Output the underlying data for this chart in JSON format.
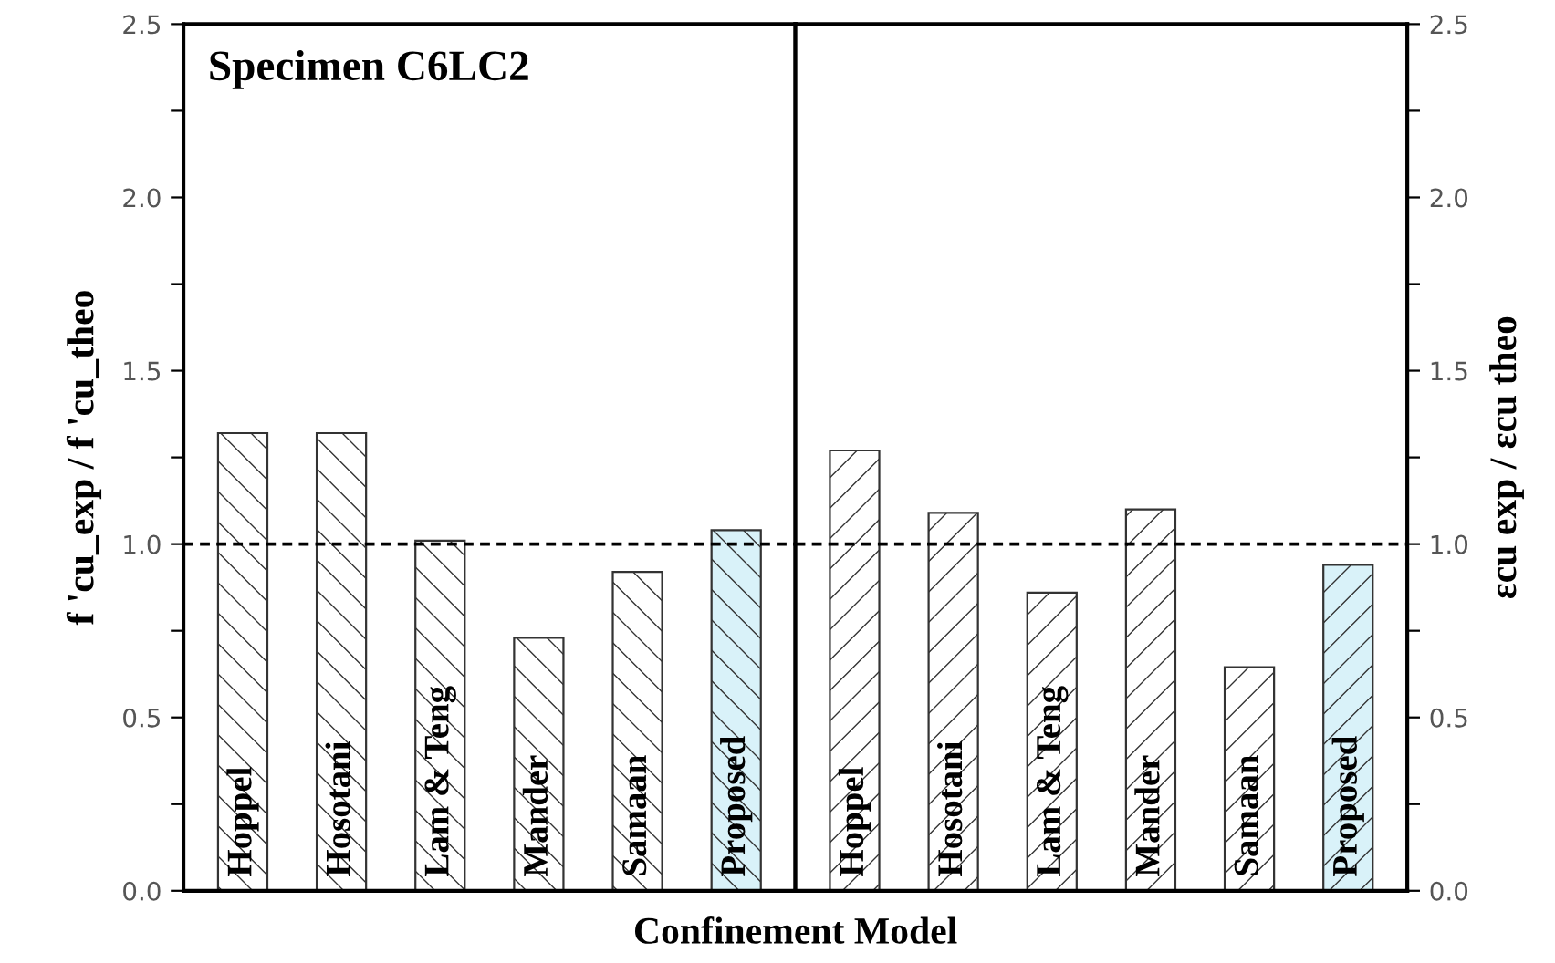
{
  "chart_data": [
    {
      "type": "bar",
      "xlabel": "Confinement Model",
      "ylabel": "f 'cu_exp / f 'cu_theo",
      "annotations": [
        "Specimen C6LC2"
      ],
      "categories": [
        "Hoppel",
        "Hosotani",
        "Lam & Teng",
        "Mander",
        "Samaan",
        "Proposed"
      ],
      "values": [
        1.32,
        1.32,
        1.01,
        0.73,
        0.92,
        1.04
      ],
      "colors": [
        "#ffffff",
        "#ffffff",
        "#ffffff",
        "#ffffff",
        "#ffffff",
        "#d9f2f9"
      ],
      "ylim": [
        0,
        2.5
      ],
      "yticks": [
        {
          "value": 0,
          "label": "0.0"
        },
        {
          "value": 0.25,
          "label": null
        },
        0.5,
        {
          "value": 0.75,
          "label": null
        },
        {
          "value": 1,
          "label": "1.0"
        },
        {
          "value": 1.25,
          "label": null
        },
        1.5,
        {
          "value": 1.75,
          "label": null
        },
        {
          "value": 2,
          "label": "2.0"
        },
        {
          "value": 2.25,
          "label": null
        },
        2.5
      ],
      "ref_lines": [
        {
          "axis": "y",
          "value": 1.0,
          "line_style": "dashed"
        }
      ],
      "tick_labels": "y",
      "grid": false,
      "legend": false
    },
    {
      "type": "bar",
      "ylabel": "εcu exp / εcu theo",
      "categories": [
        "Hoppel",
        "Hosotani",
        "Lam & Teng",
        "Mander",
        "Samaan",
        "Proposed"
      ],
      "values": [
        1.27,
        1.09,
        0.86,
        1.1,
        0.645,
        0.94
      ],
      "colors": [
        "#ffffff",
        "#ffffff",
        "#ffffff",
        "#ffffff",
        "#ffffff",
        "#d9f2f9"
      ],
      "ylim": [
        0,
        2.5
      ],
      "yticks": [
        {
          "value": 0,
          "label": "0.0"
        },
        {
          "value": 0.25,
          "label": null
        },
        0.5,
        {
          "value": 0.75,
          "label": null
        },
        {
          "value": 1,
          "label": "1.0"
        },
        {
          "value": 1.25,
          "label": null
        },
        1.5,
        {
          "value": 1.75,
          "label": null
        },
        {
          "value": 2,
          "label": "2.0"
        },
        {
          "value": 2.25,
          "label": null
        },
        2.5
      ],
      "ref_lines": [
        {
          "axis": "y",
          "value": 1.0,
          "line_style": "dashed"
        }
      ],
      "tick_labels": "y",
      "grid": false,
      "legend": false
    }
  ]
}
